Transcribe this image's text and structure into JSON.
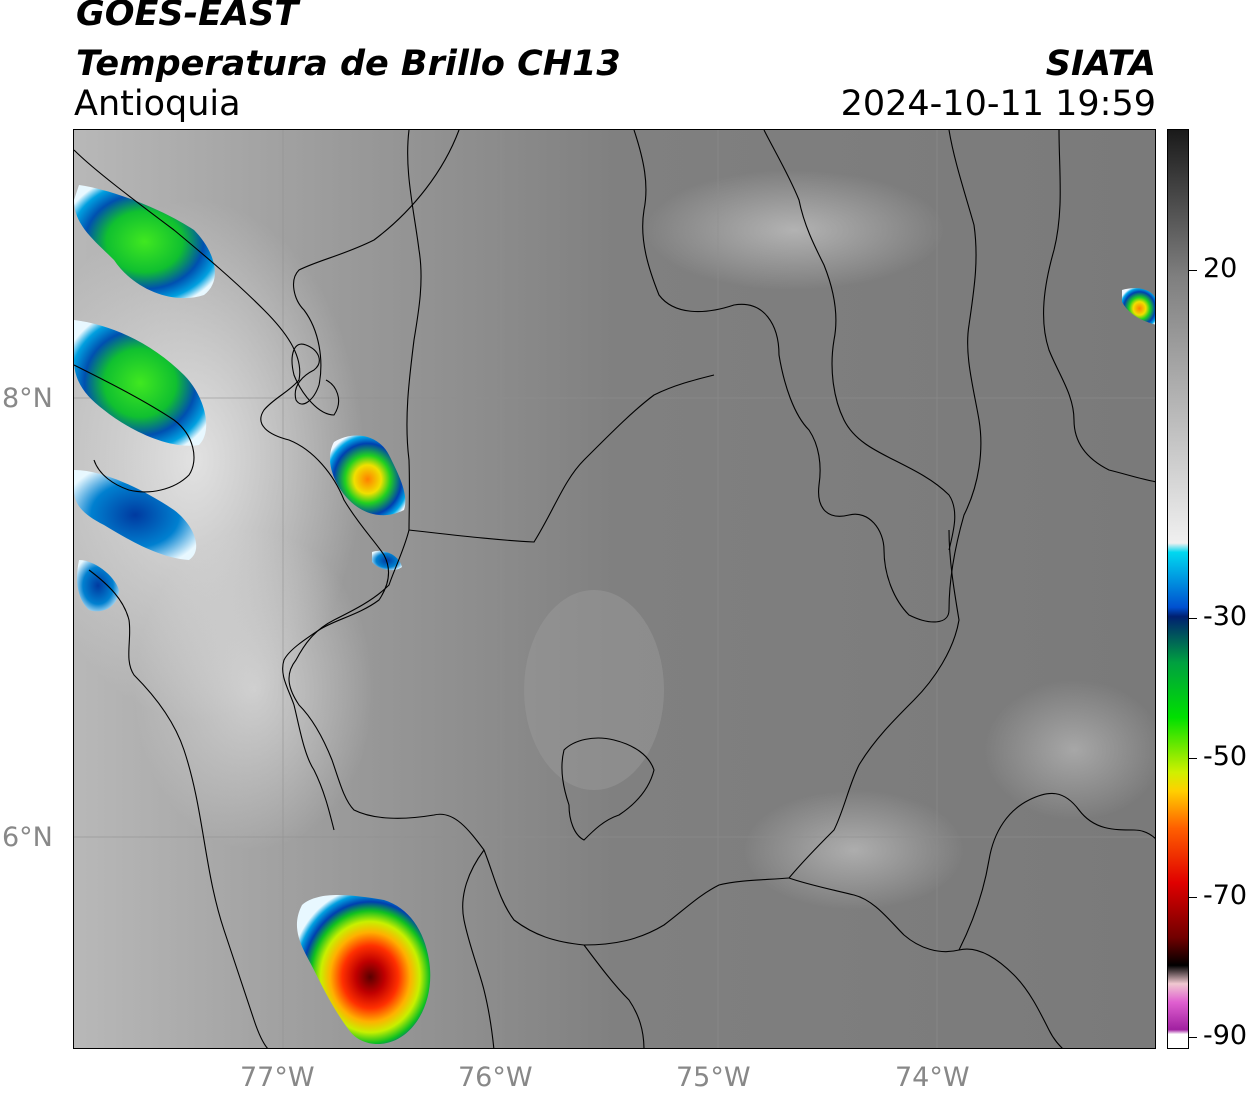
{
  "header": {
    "satellite": "GOES-EAST",
    "product": "Temperatura de Brillo CH13",
    "region": "Antioquia",
    "organization": "SIATA",
    "timestamp": "2024-10-11 19:59"
  },
  "map": {
    "longitude_labels": [
      "77°W",
      "76°W",
      "75°W",
      "74°W"
    ],
    "latitude_labels": [
      "8°N",
      "6°N"
    ],
    "background_color": "#7e7e7e",
    "border_color": "#000000"
  },
  "colorbar": {
    "tick_labels": [
      "20",
      "-30",
      "-50",
      "-70",
      "-90"
    ],
    "stops": [
      "#1a1a1a",
      "#7f7f7f",
      "#f0f0f0",
      "#00d8f0",
      "#0050d0",
      "#002070",
      "#00a040",
      "#00e000",
      "#d0f000",
      "#ffd000",
      "#ff6000",
      "#e00000",
      "#700000",
      "#000000",
      "#f0c8d0",
      "#e060d0",
      "#a020a0",
      "#ffffff"
    ]
  }
}
